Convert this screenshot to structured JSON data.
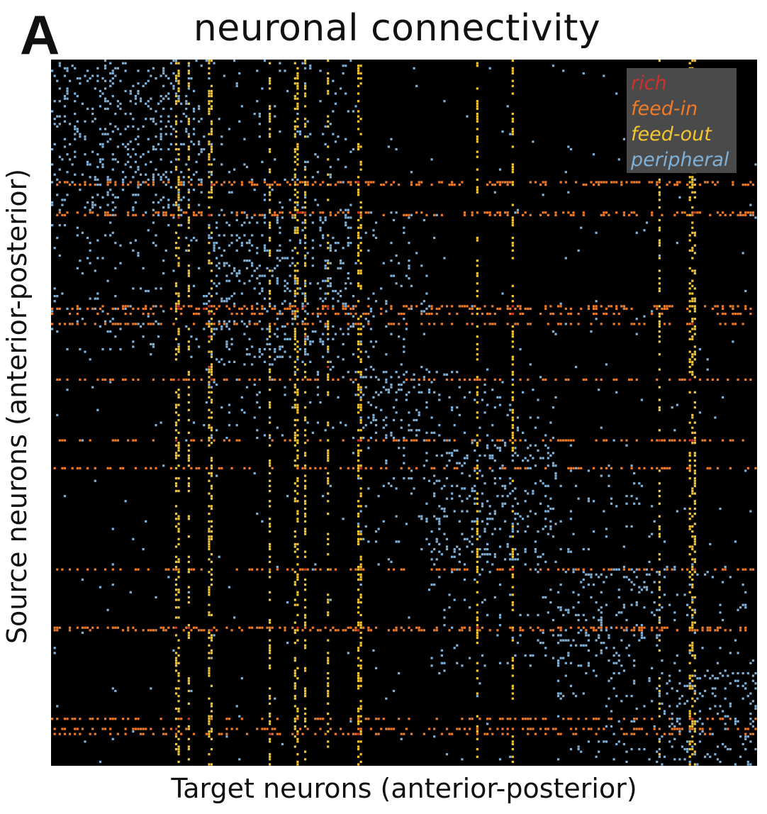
{
  "panel": {
    "letter": "A"
  },
  "chart_data": {
    "type": "heatmap",
    "title": "neuronal connectivity",
    "xlabel": "Target neurons (anterior-posterior)",
    "ylabel": "Source neurons (anterior-posterior)",
    "n_neurons": 279,
    "legend_placement": "top-right",
    "grid": false,
    "background": "#000000",
    "series": [
      {
        "name": "rich",
        "color": "#d0312d"
      },
      {
        "name": "feed-in",
        "color": "#ef7a28"
      },
      {
        "name": "feed-out",
        "color": "#f5c530"
      },
      {
        "name": "peripheral",
        "color": "#7fb1d8"
      }
    ],
    "structure": {
      "feed_out_columns": [
        49,
        50,
        54,
        62,
        63,
        86,
        96,
        97,
        100,
        109,
        121,
        122,
        168,
        182,
        240,
        252,
        253,
        254
      ],
      "feed_in_rows": [
        48,
        49,
        60,
        61,
        97,
        98,
        100,
        104,
        126,
        150,
        161,
        201,
        224,
        225,
        260,
        264,
        266
      ],
      "rich_nodes": [
        50,
        60,
        62,
        97,
        98,
        100,
        109,
        121
      ],
      "diagonal_blocks": [
        [
          0,
          60
        ],
        [
          60,
          120
        ],
        [
          120,
          150
        ],
        [
          150,
          200
        ],
        [
          200,
          240
        ],
        [
          240,
          279
        ]
      ]
    }
  }
}
